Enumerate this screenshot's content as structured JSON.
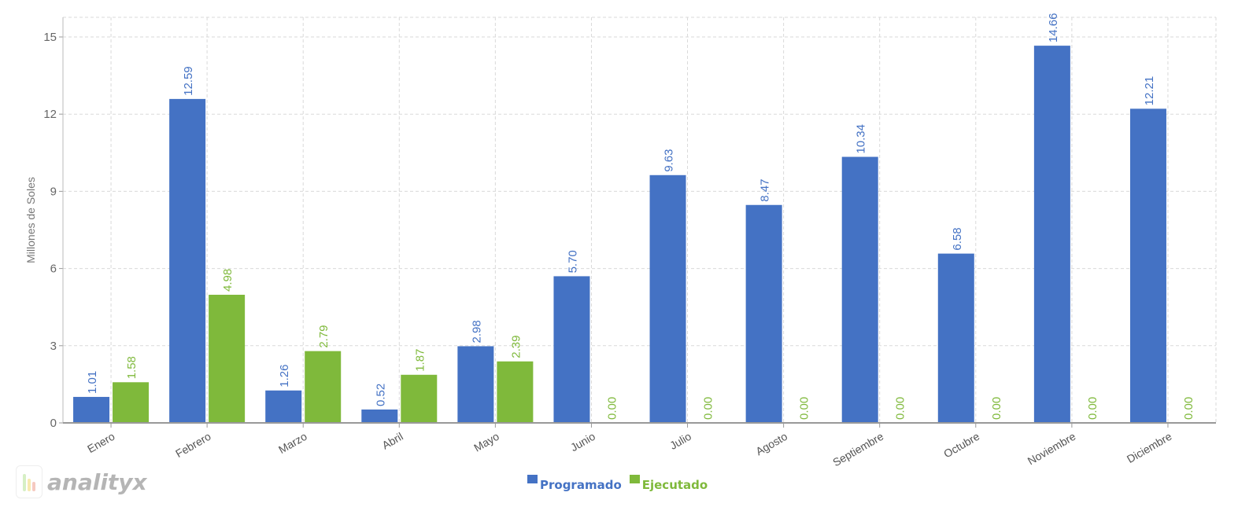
{
  "chart_data": {
    "type": "bar",
    "title": "",
    "xlabel": "",
    "ylabel": "Millones de Soles",
    "ylim": [
      0,
      15.5
    ],
    "yticks": [
      0,
      3,
      6,
      9,
      12,
      15
    ],
    "grid": true,
    "legend_position": "bottom-center",
    "categories": [
      "Enero",
      "Febrero",
      "Marzo",
      "Abril",
      "Mayo",
      "Junio",
      "Julio",
      "Agosto",
      "Septiembre",
      "Octubre",
      "Noviembre",
      "Diciembre"
    ],
    "series": [
      {
        "name": "Programado",
        "color": "#4472c4",
        "values": [
          1.01,
          12.59,
          1.26,
          0.52,
          2.98,
          5.7,
          9.63,
          8.47,
          10.34,
          6.58,
          14.66,
          12.21
        ]
      },
      {
        "name": "Ejecutado",
        "color": "#7fb93b",
        "values": [
          1.58,
          4.98,
          2.79,
          1.87,
          2.39,
          0.0,
          0.0,
          0.0,
          0.0,
          0.0,
          0.0,
          0.0
        ]
      }
    ]
  },
  "branding": {
    "logo_text": "analityx"
  }
}
